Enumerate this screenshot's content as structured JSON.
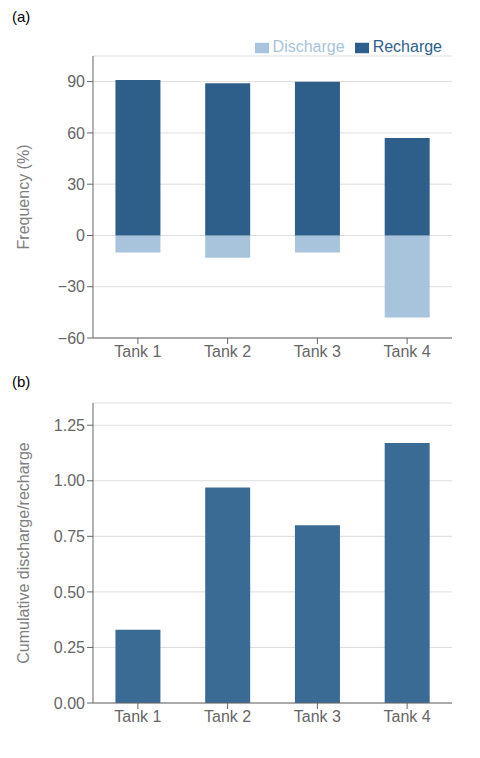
{
  "chart_data": [
    {
      "type": "bar",
      "title": "(a)",
      "categories": [
        "Tank 1",
        "Tank 2",
        "Tank 3",
        "Tank 4"
      ],
      "series": [
        {
          "name": "Discharge",
          "color": "#A8C4DC",
          "values": [
            -10,
            -13,
            -10,
            -48
          ]
        },
        {
          "name": "Recharge",
          "color": "#2E5F8A",
          "values": [
            91,
            89,
            90,
            57
          ]
        }
      ],
      "stacked": true,
      "y_label": "Frequency (%)",
      "ylim": [
        -60,
        105
      ],
      "yticks": [
        {
          "value": -60,
          "label": "−60"
        },
        {
          "value": -30,
          "label": "−30"
        },
        0,
        30,
        60,
        90
      ],
      "grid": true,
      "legend": "upper right"
    },
    {
      "type": "bar",
      "title": "(b)",
      "categories": [
        "Tank 1",
        "Tank 2",
        "Tank 3",
        "Tank 4"
      ],
      "values": [
        0.33,
        0.97,
        0.8,
        1.17
      ],
      "color": "#3A6B94",
      "y_label": "Cumulative discharge/recharge",
      "ylim": [
        0,
        1.35
      ],
      "yticks": [
        {
          "value": 0,
          "label": "0.00"
        },
        {
          "value": 0.25,
          "label": "0.25"
        },
        {
          "value": 0.5,
          "label": "0.50"
        },
        {
          "value": 0.75,
          "label": "0.75"
        },
        {
          "value": 1.0,
          "label": "1.00"
        },
        {
          "value": 1.25,
          "label": "1.25"
        }
      ],
      "grid": true
    }
  ]
}
